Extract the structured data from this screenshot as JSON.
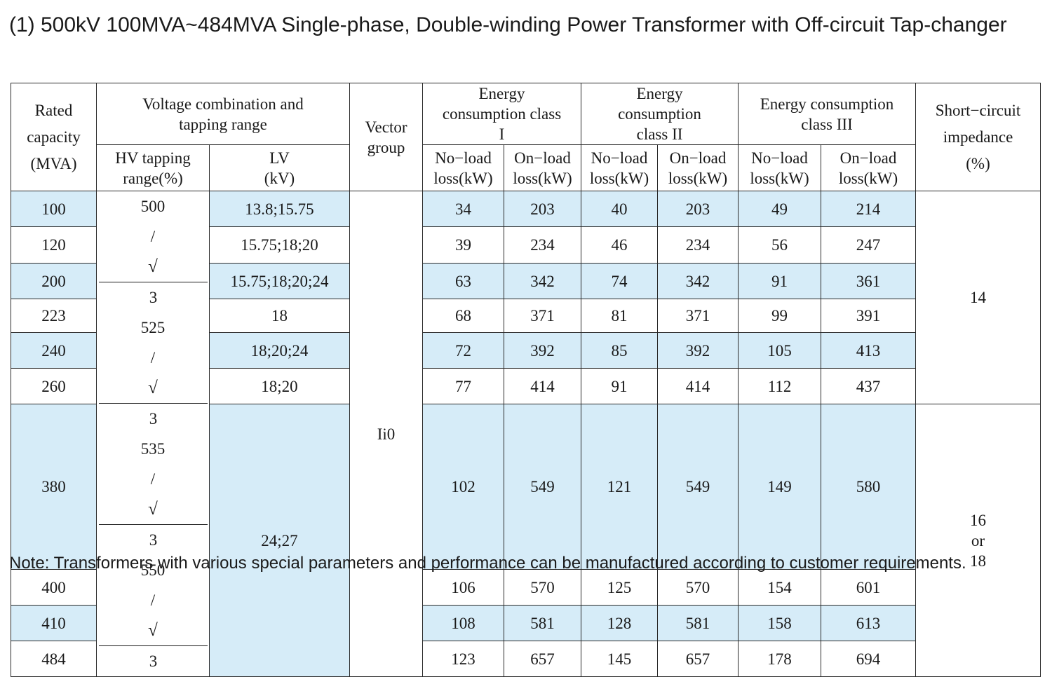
{
  "title": "(1) 500kV 100MVA~484MVA Single-phase, Double-winding Power Transformer with Off-circuit Tap-changer",
  "header": {
    "rated_capacity": [
      "Rated",
      "capacity",
      "(MVA)"
    ],
    "voltage_combination": [
      "Voltage combination and",
      "tapping range"
    ],
    "hv_tapping": [
      "HV tapping",
      "range(%)"
    ],
    "lv": [
      "LV",
      "(kV)"
    ],
    "vector_group": [
      "Vector",
      "group"
    ],
    "class_1": [
      "Energy",
      "consumption class",
      "I"
    ],
    "class_2": [
      "Energy",
      "consumption",
      "class II"
    ],
    "class_3": [
      "Energy consumption",
      "class III"
    ],
    "short_circuit": [
      "Short−circuit",
      "impedance",
      "(%)"
    ],
    "no_load_c1": [
      "No−load",
      "loss(kW)"
    ],
    "on_load_c1": [
      "On−load",
      "loss(kW)"
    ],
    "no_load_c2": [
      "No−load",
      "loss(kW)"
    ],
    "on_load_c2": [
      "On−load",
      "loss(kW)"
    ],
    "no_load_c3": [
      "No−load",
      "loss(kW)"
    ],
    "on_load_c3": [
      "On−load",
      "loss(kW)"
    ]
  },
  "hv_values": [
    {
      "base": "500",
      "radicand": "3"
    },
    {
      "base": "525",
      "radicand": "3"
    },
    {
      "base": "535",
      "radicand": "3"
    },
    {
      "base": "550",
      "radicand": "3"
    }
  ],
  "vector_group_value": "Ii0",
  "lv_values": [
    "13.8;15.75",
    "15.75;18;20",
    "15.75;18;20;24",
    "18",
    "18;20;24",
    "18;20",
    "24;27"
  ],
  "impedance_values": [
    "14",
    "16",
    "or",
    "18"
  ],
  "rows": [
    {
      "capacity": "100",
      "c1_no": "34",
      "c1_on": "203",
      "c2_no": "40",
      "c2_on": "203",
      "c3_no": "49",
      "c3_on": "214"
    },
    {
      "capacity": "120",
      "c1_no": "39",
      "c1_on": "234",
      "c2_no": "46",
      "c2_on": "234",
      "c3_no": "56",
      "c3_on": "247"
    },
    {
      "capacity": "200",
      "c1_no": "63",
      "c1_on": "342",
      "c2_no": "74",
      "c2_on": "342",
      "c3_no": "91",
      "c3_on": "361"
    },
    {
      "capacity": "223",
      "c1_no": "68",
      "c1_on": "371",
      "c2_no": "81",
      "c2_on": "371",
      "c3_no": "99",
      "c3_on": "391"
    },
    {
      "capacity": "240",
      "c1_no": "72",
      "c1_on": "392",
      "c2_no": "85",
      "c2_on": "392",
      "c3_no": "105",
      "c3_on": "413"
    },
    {
      "capacity": "260",
      "c1_no": "77",
      "c1_on": "414",
      "c2_no": "91",
      "c2_on": "414",
      "c3_no": "112",
      "c3_on": "437"
    },
    {
      "capacity": "380",
      "c1_no": "102",
      "c1_on": "549",
      "c2_no": "121",
      "c2_on": "549",
      "c3_no": "149",
      "c3_on": "580"
    },
    {
      "capacity": "400",
      "c1_no": "106",
      "c1_on": "570",
      "c2_no": "125",
      "c2_on": "570",
      "c3_no": "154",
      "c3_on": "601"
    },
    {
      "capacity": "410",
      "c1_no": "108",
      "c1_on": "581",
      "c2_no": "128",
      "c2_on": "581",
      "c3_no": "158",
      "c3_on": "613"
    },
    {
      "capacity": "484",
      "c1_no": "123",
      "c1_on": "657",
      "c2_no": "145",
      "c2_on": "657",
      "c3_no": "178",
      "c3_on": "694"
    }
  ],
  "note": "Note: Transformers with various special parameters and performance can be manufactured according to customer requirements.",
  "colors": {
    "highlight": "#d6ecf8",
    "border": "#2a2a2a",
    "text": "#1a1a1a"
  }
}
